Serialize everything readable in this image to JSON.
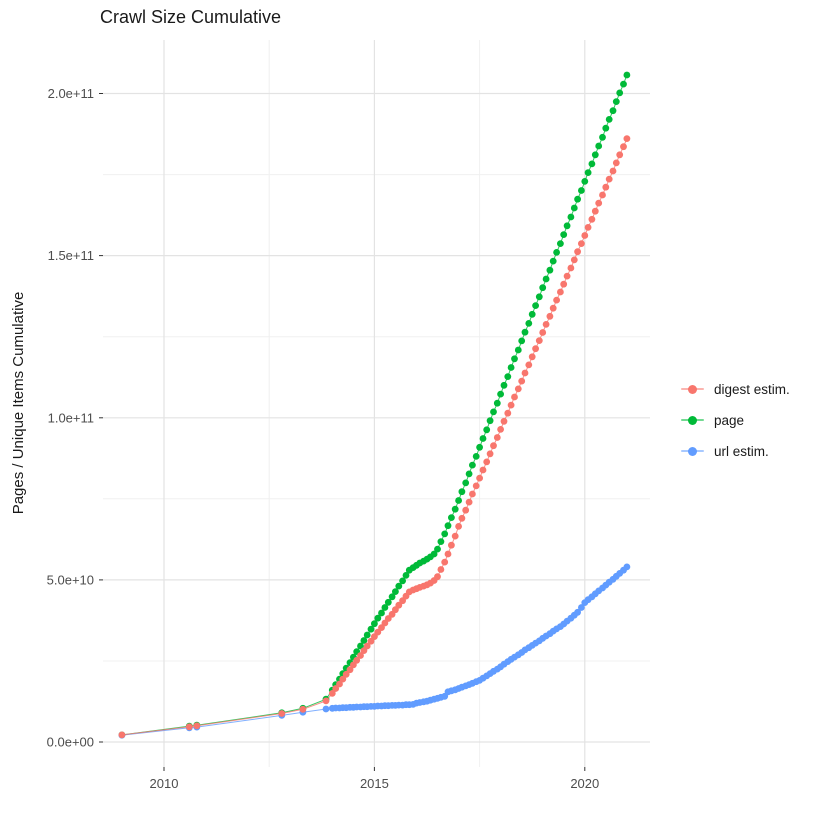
{
  "chart_data": {
    "type": "scatter",
    "title": "Crawl Size Cumulative",
    "xlabel": "",
    "ylabel": "Pages / Unique Items Cumulative",
    "value_unit_note": "values stored in billions (1e9) of items",
    "xlim": [
      2008.55,
      2021.55
    ],
    "ylim": [
      -7.7,
      216.5
    ],
    "grid": true,
    "legend_position": "right",
    "x_ticks": [
      {
        "v": 2010,
        "label": "2010"
      },
      {
        "v": 2015,
        "label": "2015"
      },
      {
        "v": 2020,
        "label": "2020"
      }
    ],
    "x_minor": [
      2012.5,
      2017.5
    ],
    "y_ticks": [
      {
        "v": 0,
        "label": "0.0e+00"
      },
      {
        "v": 50,
        "label": "5.0e+10"
      },
      {
        "v": 100,
        "label": "1.0e+11"
      },
      {
        "v": 150,
        "label": "1.5e+11"
      },
      {
        "v": 200,
        "label": "2.0e+11"
      }
    ],
    "y_minor": [
      25,
      75,
      125,
      175
    ],
    "draw_order": [
      1,
      2,
      0
    ],
    "series": [
      {
        "name": "digest estim.",
        "color": "#F8766D",
        "points": [
          [
            2009.0,
            2.2
          ],
          [
            2010.6,
            4.7
          ],
          [
            2010.78,
            5.0
          ],
          [
            2012.8,
            8.8
          ],
          [
            2013.3,
            10.1
          ],
          [
            2013.85,
            12.7
          ],
          [
            2014.0,
            15.0
          ],
          [
            2014.08,
            16.5
          ],
          [
            2014.17,
            17.9
          ],
          [
            2014.25,
            19.4
          ],
          [
            2014.33,
            20.9
          ],
          [
            2014.42,
            22.3
          ],
          [
            2014.5,
            23.8
          ],
          [
            2014.58,
            25.2
          ],
          [
            2014.67,
            26.7
          ],
          [
            2014.75,
            28.2
          ],
          [
            2014.83,
            29.6
          ],
          [
            2014.92,
            31.1
          ],
          [
            2015.0,
            32.5
          ],
          [
            2015.08,
            33.9
          ],
          [
            2015.17,
            35.3
          ],
          [
            2015.25,
            36.7
          ],
          [
            2015.33,
            38.1
          ],
          [
            2015.42,
            39.4
          ],
          [
            2015.5,
            40.8
          ],
          [
            2015.58,
            42.2
          ],
          [
            2015.67,
            43.6
          ],
          [
            2015.75,
            45.0
          ],
          [
            2015.83,
            46.3
          ],
          [
            2015.92,
            46.9
          ],
          [
            2016.0,
            47.3
          ],
          [
            2016.08,
            47.7
          ],
          [
            2016.17,
            48.1
          ],
          [
            2016.25,
            48.5
          ],
          [
            2016.33,
            49.0
          ],
          [
            2016.42,
            49.8
          ],
          [
            2016.5,
            51.0
          ],
          [
            2016.58,
            53.2
          ],
          [
            2016.67,
            55.5
          ],
          [
            2016.75,
            58.0
          ],
          [
            2016.83,
            60.7
          ],
          [
            2016.92,
            63.5
          ],
          [
            2017.0,
            66.5
          ],
          [
            2017.08,
            69.0
          ],
          [
            2017.17,
            71.5
          ],
          [
            2017.25,
            74.0
          ],
          [
            2017.33,
            76.5
          ],
          [
            2017.42,
            79.0
          ],
          [
            2017.5,
            81.4
          ],
          [
            2017.58,
            83.9
          ],
          [
            2017.67,
            86.4
          ],
          [
            2017.75,
            88.9
          ],
          [
            2017.83,
            91.4
          ],
          [
            2017.92,
            93.9
          ],
          [
            2018.0,
            96.4
          ],
          [
            2018.08,
            98.9
          ],
          [
            2018.17,
            101.4
          ],
          [
            2018.25,
            103.9
          ],
          [
            2018.33,
            106.4
          ],
          [
            2018.42,
            108.9
          ],
          [
            2018.5,
            111.3
          ],
          [
            2018.58,
            113.8
          ],
          [
            2018.67,
            116.3
          ],
          [
            2018.75,
            118.8
          ],
          [
            2018.83,
            121.3
          ],
          [
            2018.92,
            123.8
          ],
          [
            2019.0,
            126.3
          ],
          [
            2019.08,
            128.8
          ],
          [
            2019.17,
            131.3
          ],
          [
            2019.25,
            133.8
          ],
          [
            2019.33,
            136.3
          ],
          [
            2019.42,
            138.8
          ],
          [
            2019.5,
            141.2
          ],
          [
            2019.58,
            143.7
          ],
          [
            2019.67,
            146.2
          ],
          [
            2019.75,
            148.7
          ],
          [
            2019.83,
            151.2
          ],
          [
            2019.92,
            153.7
          ],
          [
            2020.0,
            156.2
          ],
          [
            2020.08,
            158.7
          ],
          [
            2020.17,
            161.2
          ],
          [
            2020.25,
            163.7
          ],
          [
            2020.33,
            166.2
          ],
          [
            2020.42,
            168.7
          ],
          [
            2020.5,
            171.1
          ],
          [
            2020.58,
            173.6
          ],
          [
            2020.67,
            176.1
          ],
          [
            2020.75,
            178.6
          ],
          [
            2020.83,
            181.1
          ],
          [
            2020.92,
            183.6
          ],
          [
            2021.0,
            186.1
          ]
        ]
      },
      {
        "name": "page",
        "color": "#00BA38",
        "points": [
          [
            2009.0,
            2.2
          ],
          [
            2010.6,
            4.9
          ],
          [
            2010.78,
            5.2
          ],
          [
            2012.8,
            9.0
          ],
          [
            2013.3,
            10.4
          ],
          [
            2013.85,
            13.2
          ],
          [
            2014.0,
            16.0
          ],
          [
            2014.08,
            17.7
          ],
          [
            2014.17,
            19.4
          ],
          [
            2014.25,
            21.1
          ],
          [
            2014.33,
            22.8
          ],
          [
            2014.42,
            24.5
          ],
          [
            2014.5,
            26.2
          ],
          [
            2014.58,
            27.9
          ],
          [
            2014.67,
            29.6
          ],
          [
            2014.75,
            31.3
          ],
          [
            2014.83,
            33.0
          ],
          [
            2014.92,
            34.8
          ],
          [
            2015.0,
            36.5
          ],
          [
            2015.08,
            38.2
          ],
          [
            2015.17,
            39.8
          ],
          [
            2015.25,
            41.5
          ],
          [
            2015.33,
            43.1
          ],
          [
            2015.42,
            44.8
          ],
          [
            2015.5,
            46.4
          ],
          [
            2015.58,
            48.1
          ],
          [
            2015.67,
            49.7
          ],
          [
            2015.75,
            51.4
          ],
          [
            2015.83,
            53.0
          ],
          [
            2015.92,
            53.8
          ],
          [
            2016.0,
            54.5
          ],
          [
            2016.08,
            55.2
          ],
          [
            2016.17,
            55.8
          ],
          [
            2016.25,
            56.4
          ],
          [
            2016.33,
            57.1
          ],
          [
            2016.42,
            58.0
          ],
          [
            2016.5,
            59.5
          ],
          [
            2016.58,
            61.8
          ],
          [
            2016.67,
            64.2
          ],
          [
            2016.75,
            66.7
          ],
          [
            2016.83,
            69.2
          ],
          [
            2016.92,
            71.8
          ],
          [
            2017.0,
            74.5
          ],
          [
            2017.08,
            77.2
          ],
          [
            2017.17,
            79.9
          ],
          [
            2017.25,
            82.7
          ],
          [
            2017.33,
            85.4
          ],
          [
            2017.42,
            88.1
          ],
          [
            2017.5,
            90.9
          ],
          [
            2017.58,
            93.6
          ],
          [
            2017.67,
            96.3
          ],
          [
            2017.75,
            99.1
          ],
          [
            2017.83,
            101.8
          ],
          [
            2017.92,
            104.5
          ],
          [
            2018.0,
            107.3
          ],
          [
            2018.08,
            110.0
          ],
          [
            2018.17,
            112.7
          ],
          [
            2018.25,
            115.5
          ],
          [
            2018.33,
            118.2
          ],
          [
            2018.42,
            120.9
          ],
          [
            2018.5,
            123.7
          ],
          [
            2018.58,
            126.4
          ],
          [
            2018.67,
            129.1
          ],
          [
            2018.75,
            131.9
          ],
          [
            2018.83,
            134.6
          ],
          [
            2018.92,
            137.3
          ],
          [
            2019.0,
            140.1
          ],
          [
            2019.08,
            142.8
          ],
          [
            2019.17,
            145.5
          ],
          [
            2019.25,
            148.3
          ],
          [
            2019.33,
            151.0
          ],
          [
            2019.42,
            153.7
          ],
          [
            2019.5,
            156.5
          ],
          [
            2019.58,
            159.2
          ],
          [
            2019.67,
            161.9
          ],
          [
            2019.75,
            164.7
          ],
          [
            2019.83,
            167.4
          ],
          [
            2019.92,
            170.1
          ],
          [
            2020.0,
            172.9
          ],
          [
            2020.08,
            175.6
          ],
          [
            2020.17,
            178.3
          ],
          [
            2020.25,
            181.1
          ],
          [
            2020.33,
            183.8
          ],
          [
            2020.42,
            186.5
          ],
          [
            2020.5,
            189.3
          ],
          [
            2020.58,
            192.0
          ],
          [
            2020.67,
            194.7
          ],
          [
            2020.75,
            197.5
          ],
          [
            2020.83,
            200.2
          ],
          [
            2020.92,
            202.9
          ],
          [
            2021.0,
            205.7
          ]
        ]
      },
      {
        "name": "url estim.",
        "color": "#619CFF",
        "points": [
          [
            2009.0,
            2.1
          ],
          [
            2010.6,
            4.4
          ],
          [
            2010.78,
            4.6
          ],
          [
            2012.8,
            8.2
          ],
          [
            2013.3,
            9.2
          ],
          [
            2013.85,
            10.2
          ],
          [
            2014.0,
            10.4
          ],
          [
            2014.08,
            10.5
          ],
          [
            2014.17,
            10.5
          ],
          [
            2014.25,
            10.6
          ],
          [
            2014.33,
            10.6
          ],
          [
            2014.42,
            10.7
          ],
          [
            2014.5,
            10.7
          ],
          [
            2014.58,
            10.8
          ],
          [
            2014.67,
            10.8
          ],
          [
            2014.75,
            10.9
          ],
          [
            2014.83,
            10.9
          ],
          [
            2014.92,
            11.0
          ],
          [
            2015.0,
            11.0
          ],
          [
            2015.08,
            11.1
          ],
          [
            2015.17,
            11.1
          ],
          [
            2015.25,
            11.2
          ],
          [
            2015.33,
            11.2
          ],
          [
            2015.42,
            11.3
          ],
          [
            2015.5,
            11.3
          ],
          [
            2015.58,
            11.4
          ],
          [
            2015.67,
            11.4
          ],
          [
            2015.75,
            11.5
          ],
          [
            2015.83,
            11.5
          ],
          [
            2015.92,
            11.6
          ],
          [
            2016.0,
            12.0
          ],
          [
            2016.08,
            12.2
          ],
          [
            2016.17,
            12.4
          ],
          [
            2016.25,
            12.6
          ],
          [
            2016.33,
            12.9
          ],
          [
            2016.42,
            13.2
          ],
          [
            2016.5,
            13.5
          ],
          [
            2016.58,
            13.8
          ],
          [
            2016.67,
            14.1
          ],
          [
            2016.75,
            15.5
          ],
          [
            2016.83,
            15.8
          ],
          [
            2016.92,
            16.1
          ],
          [
            2017.0,
            16.5
          ],
          [
            2017.08,
            16.9
          ],
          [
            2017.17,
            17.3
          ],
          [
            2017.25,
            17.7
          ],
          [
            2017.33,
            18.1
          ],
          [
            2017.42,
            18.6
          ],
          [
            2017.5,
            19.0
          ],
          [
            2017.58,
            19.7
          ],
          [
            2017.67,
            20.4
          ],
          [
            2017.75,
            21.1
          ],
          [
            2017.83,
            21.8
          ],
          [
            2017.92,
            22.5
          ],
          [
            2018.0,
            23.2
          ],
          [
            2018.08,
            24.0
          ],
          [
            2018.17,
            24.8
          ],
          [
            2018.25,
            25.5
          ],
          [
            2018.33,
            26.2
          ],
          [
            2018.42,
            26.9
          ],
          [
            2018.5,
            27.6
          ],
          [
            2018.58,
            28.4
          ],
          [
            2018.67,
            29.1
          ],
          [
            2018.75,
            29.8
          ],
          [
            2018.83,
            30.5
          ],
          [
            2018.92,
            31.2
          ],
          [
            2019.0,
            32.0
          ],
          [
            2019.08,
            32.7
          ],
          [
            2019.17,
            33.4
          ],
          [
            2019.25,
            34.2
          ],
          [
            2019.33,
            34.9
          ],
          [
            2019.42,
            35.6
          ],
          [
            2019.5,
            36.4
          ],
          [
            2019.58,
            37.3
          ],
          [
            2019.67,
            38.2
          ],
          [
            2019.75,
            39.1
          ],
          [
            2019.83,
            40.0
          ],
          [
            2019.92,
            41.5
          ],
          [
            2020.0,
            43.0
          ],
          [
            2020.08,
            43.9
          ],
          [
            2020.17,
            44.8
          ],
          [
            2020.25,
            45.7
          ],
          [
            2020.33,
            46.6
          ],
          [
            2020.42,
            47.5
          ],
          [
            2020.5,
            48.4
          ],
          [
            2020.58,
            49.3
          ],
          [
            2020.67,
            50.2
          ],
          [
            2020.75,
            51.1
          ],
          [
            2020.83,
            52.0
          ],
          [
            2020.92,
            53.0
          ],
          [
            2021.0,
            54.0
          ]
        ]
      }
    ],
    "style": {
      "grid_major_color": "#e3e3e3",
      "grid_minor_color": "#f0f0f0",
      "tick_color": "#333333",
      "axis_text_color": "#4d4d4d",
      "point_radius": 3.4,
      "line_width": 1
    }
  }
}
